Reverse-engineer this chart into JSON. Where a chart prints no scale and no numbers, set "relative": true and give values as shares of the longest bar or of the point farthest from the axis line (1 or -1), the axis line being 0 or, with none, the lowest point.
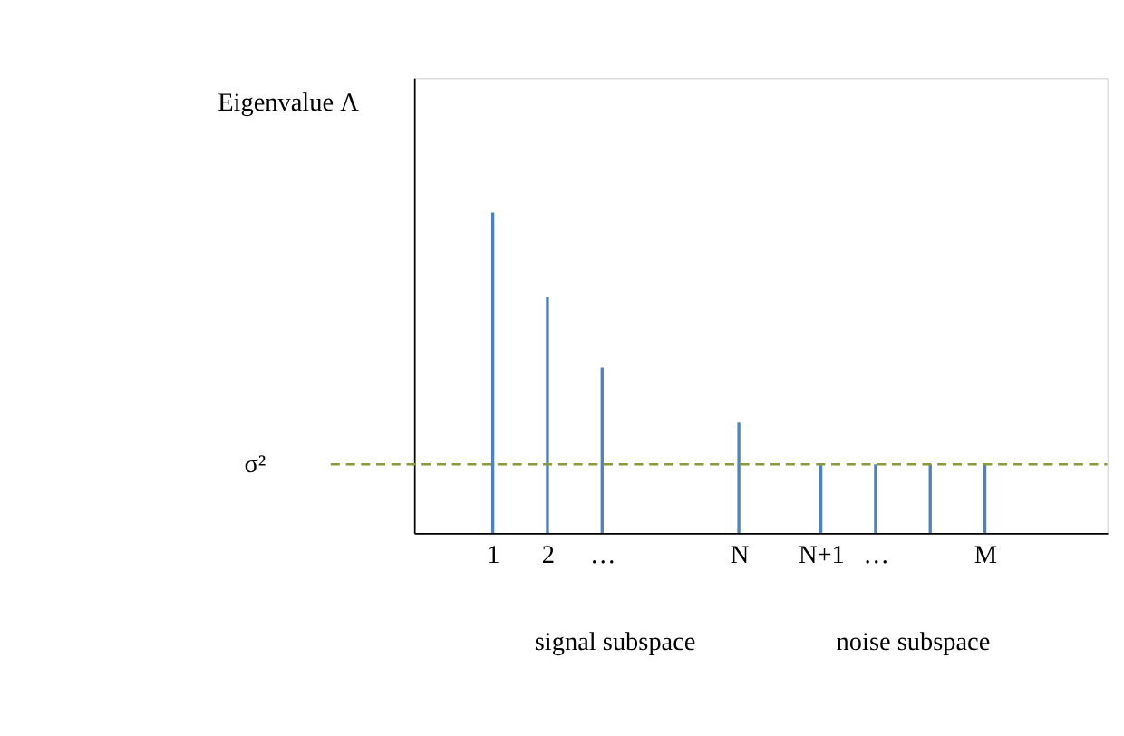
{
  "chart_data": {
    "type": "bar",
    "relative": true,
    "ylabel": "Eigenvalue Λ",
    "x": [
      1,
      2,
      3,
      5.5,
      7,
      8,
      9,
      10
    ],
    "values": [
      1,
      0.735,
      0.516,
      0.344,
      0.214,
      0.214,
      0.214,
      0.214
    ],
    "color": "#4f81bd",
    "xlim": [
      -0.3,
      12.1
    ],
    "xticks": [
      {
        "value": 1,
        "label": "1"
      },
      {
        "value": 2,
        "label": "2"
      },
      {
        "value": 3,
        "label": "…"
      },
      {
        "value": 5.5,
        "label": "N"
      },
      {
        "value": 7,
        "label": "N+1"
      },
      {
        "value": 8,
        "label": "…"
      },
      {
        "value": 10,
        "label": "M"
      }
    ],
    "ref_lines": [
      {
        "axis": "y",
        "value": 0.214,
        "label": "σ²",
        "color": "#8a9a3c",
        "line_style": "dashed"
      }
    ],
    "annotations": [
      "signal subspace",
      "noise subspace"
    ],
    "grid": false
  }
}
